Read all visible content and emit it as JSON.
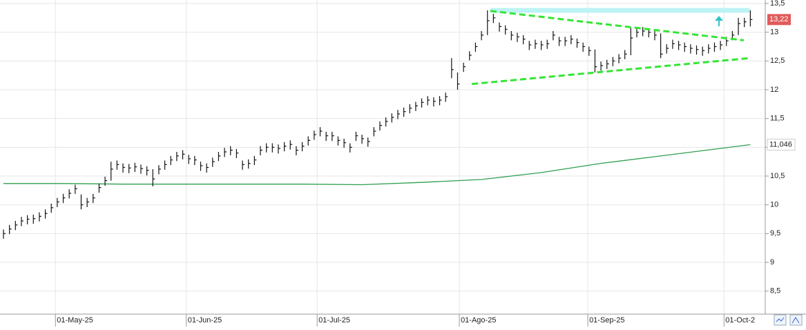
{
  "chart_data": {
    "type": "ohlc",
    "x": [
      0,
      1,
      2,
      3,
      4,
      5,
      6,
      7,
      8,
      9,
      10,
      11,
      12,
      13,
      14,
      15,
      16,
      17,
      18,
      19,
      20,
      21,
      22,
      23,
      24,
      25,
      26,
      27,
      28,
      29,
      30,
      31,
      32,
      33,
      34,
      35,
      36,
      37,
      38,
      39,
      40,
      41,
      42,
      43,
      44,
      45,
      46,
      47,
      48,
      49,
      50,
      51,
      52,
      53,
      54,
      55,
      56,
      57,
      58,
      59,
      60,
      61,
      62,
      63,
      64,
      65,
      66,
      67,
      68,
      69,
      70,
      71,
      72,
      73,
      74,
      75,
      76,
      77,
      78,
      79,
      80,
      81,
      82,
      83,
      84,
      85,
      86,
      87,
      88,
      89,
      90,
      91,
      92,
      93,
      94,
      95,
      96,
      97,
      98,
      99,
      100,
      101,
      102,
      103,
      104,
      105,
      106,
      107,
      108,
      109,
      110,
      111,
      112,
      113,
      114,
      115,
      116,
      117,
      118,
      119,
      120,
      121,
      122,
      123,
      124,
      125
    ],
    "high": [
      9.57,
      9.65,
      9.72,
      9.79,
      9.82,
      9.83,
      9.87,
      9.92,
      10.02,
      10.12,
      10.19,
      10.27,
      10.35,
      10.18,
      10.12,
      10.19,
      10.37,
      10.49,
      10.75,
      10.77,
      10.72,
      10.71,
      10.73,
      10.7,
      10.67,
      10.62,
      10.69,
      10.77,
      10.85,
      10.92,
      10.95,
      10.87,
      10.85,
      10.75,
      10.72,
      10.82,
      10.92,
      10.99,
      11.02,
      10.97,
      10.77,
      10.79,
      10.85,
      11.02,
      11.07,
      11.07,
      11.05,
      11.09,
      11.12,
      11.02,
      11.09,
      11.19,
      11.29,
      11.35,
      11.27,
      11.27,
      11.19,
      11.15,
      11.07,
      11.27,
      11.22,
      11.17,
      11.35,
      11.45,
      11.52,
      11.59,
      11.65,
      11.69,
      11.75,
      11.79,
      11.85,
      11.89,
      11.87,
      11.89,
      11.95,
      12.55,
      12.3,
      12.47,
      12.67,
      12.82,
      13.02,
      13.38,
      13.32,
      13.17,
      13.12,
      13.02,
      12.99,
      12.95,
      12.85,
      12.87,
      12.85,
      12.87,
      13.02,
      12.92,
      12.92,
      12.95,
      12.89,
      12.82,
      12.75,
      12.7,
      12.49,
      12.52,
      12.57,
      12.62,
      12.69,
      13.08,
      13.07,
      13.09,
      13.07,
      13.02,
      12.98,
      12.79,
      12.87,
      12.85,
      12.82,
      12.79,
      12.77,
      12.75,
      12.79,
      12.82,
      12.85,
      12.92,
      13.02,
      13.25,
      13.25,
      13.38
    ],
    "low": [
      9.41,
      9.49,
      9.56,
      9.63,
      9.66,
      9.67,
      9.71,
      9.76,
      9.86,
      9.96,
      10.03,
      10.11,
      10.19,
      9.92,
      9.96,
      10.03,
      10.21,
      10.33,
      10.42,
      10.61,
      10.56,
      10.55,
      10.57,
      10.54,
      10.51,
      10.32,
      10.53,
      10.61,
      10.69,
      10.76,
      10.79,
      10.71,
      10.69,
      10.59,
      10.56,
      10.66,
      10.76,
      10.83,
      10.86,
      10.81,
      10.61,
      10.63,
      10.69,
      10.86,
      10.91,
      10.91,
      10.89,
      10.93,
      10.96,
      10.86,
      10.93,
      11.03,
      11.13,
      11.19,
      11.11,
      11.11,
      11.03,
      10.99,
      10.91,
      11.11,
      11.06,
      11.01,
      11.19,
      11.29,
      11.36,
      11.43,
      11.49,
      11.53,
      11.59,
      11.63,
      11.69,
      11.73,
      11.71,
      11.73,
      11.79,
      12.2,
      12.0,
      12.31,
      12.51,
      12.66,
      12.86,
      12.95,
      13.16,
      13.01,
      12.96,
      12.86,
      12.83,
      12.79,
      12.69,
      12.71,
      12.69,
      12.71,
      12.86,
      12.76,
      12.76,
      12.79,
      12.73,
      12.66,
      12.59,
      12.3,
      12.33,
      12.36,
      12.41,
      12.46,
      12.53,
      12.6,
      12.91,
      12.93,
      12.91,
      12.86,
      12.55,
      12.63,
      12.71,
      12.69,
      12.66,
      12.63,
      12.61,
      12.59,
      12.63,
      12.66,
      12.69,
      12.76,
      12.86,
      12.95,
      13.09,
      13.1
    ],
    "close": [
      9.5,
      9.58,
      9.65,
      9.72,
      9.75,
      9.76,
      9.8,
      9.85,
      9.95,
      10.05,
      10.12,
      10.2,
      10.28,
      10.0,
      10.05,
      10.12,
      10.3,
      10.42,
      10.62,
      10.7,
      10.65,
      10.64,
      10.66,
      10.63,
      10.6,
      10.45,
      10.62,
      10.7,
      10.78,
      10.85,
      10.88,
      10.8,
      10.78,
      10.68,
      10.65,
      10.75,
      10.85,
      10.92,
      10.95,
      10.9,
      10.7,
      10.72,
      10.78,
      10.95,
      11.0,
      11.0,
      10.98,
      11.02,
      11.05,
      10.95,
      11.02,
      11.12,
      11.22,
      11.28,
      11.2,
      11.2,
      11.12,
      11.08,
      11.0,
      11.2,
      11.15,
      11.1,
      11.28,
      11.38,
      11.45,
      11.52,
      11.58,
      11.62,
      11.68,
      11.72,
      11.78,
      11.82,
      11.8,
      11.82,
      11.88,
      12.35,
      12.1,
      12.4,
      12.6,
      12.75,
      12.95,
      13.2,
      13.25,
      13.1,
      13.05,
      12.95,
      12.92,
      12.88,
      12.78,
      12.8,
      12.78,
      12.8,
      12.95,
      12.85,
      12.85,
      12.88,
      12.82,
      12.75,
      12.68,
      12.4,
      12.42,
      12.45,
      12.5,
      12.55,
      12.62,
      12.9,
      13.0,
      13.02,
      13.0,
      12.95,
      12.62,
      12.72,
      12.8,
      12.78,
      12.75,
      12.72,
      12.7,
      12.68,
      12.72,
      12.75,
      12.78,
      12.85,
      12.95,
      13.15,
      13.18,
      13.22
    ],
    "close_last_label": "13,22",
    "bar_color": "#111111",
    "last_color": "#e05a5a",
    "ma": {
      "x": [
        0,
        10,
        20,
        30,
        40,
        50,
        60,
        70,
        80,
        90,
        100,
        110,
        120,
        125
      ],
      "values": [
        10.37,
        10.37,
        10.36,
        10.36,
        10.36,
        10.36,
        10.35,
        10.39,
        10.44,
        10.56,
        10.72,
        10.85,
        10.98,
        11.046
      ],
      "color": "#2e9e4e",
      "last_label": "11,046"
    },
    "trendlines": [
      {
        "x": [
          81.5,
          123.9
        ],
        "y": [
          13.37,
          12.86
        ],
        "color": "#33e633"
      },
      {
        "x": [
          78.4,
          124.9
        ],
        "y": [
          12.1,
          12.55
        ],
        "color": "#33e633"
      }
    ],
    "resistance": {
      "x": [
        81.5,
        124.9
      ],
      "y": 13.38,
      "color": "#bdf3f5"
    },
    "xlim": [
      -0.58,
      127.5
    ],
    "ylim": [
      8.1,
      13.56
    ],
    "xticks": [
      {
        "value": 8.7,
        "label": "01-May-25"
      },
      {
        "value": 30.6,
        "label": "01-Jun-25"
      },
      {
        "value": 52.5,
        "label": "01-Jul-25"
      },
      {
        "value": 76.3,
        "label": "01-Ago-25"
      },
      {
        "value": 97.8,
        "label": "01-Sep-25"
      },
      {
        "value": 120.6,
        "label": "01-Oct-2"
      }
    ],
    "yticks": [
      {
        "value": 8.5,
        "label": "8,5"
      },
      9,
      {
        "value": 9.5,
        "label": "9,5"
      },
      10,
      {
        "value": 10.5,
        "label": "10,5"
      },
      11,
      {
        "value": 11.5,
        "label": "11,5"
      },
      12,
      {
        "value": 12.5,
        "label": "12,5"
      },
      13,
      {
        "value": 13.5,
        "label": "13,5"
      }
    ],
    "grid": true
  }
}
